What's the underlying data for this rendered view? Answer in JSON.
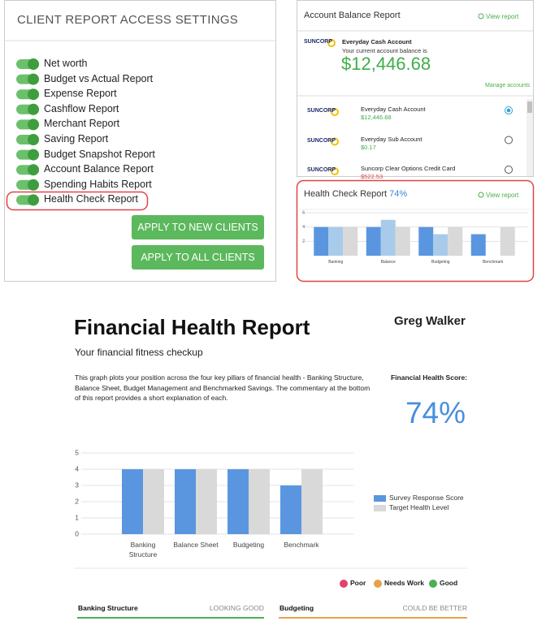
{
  "settings": {
    "title": "CLIENT REPORT ACCESS SETTINGS",
    "toggles": [
      "Net worth",
      "Budget vs Actual Report",
      "Expense Report",
      "Cashflow Report",
      "Merchant Report",
      "Saving Report",
      "Budget Snapshot Report",
      "Account Balance Report",
      "Spending Habits Report",
      "Health Check Report"
    ],
    "buttons": [
      "APPLY TO NEW CLIENTS",
      "APPLY TO ALL CLIENTS"
    ]
  },
  "account_balance": {
    "title": "Account Balance Report",
    "view_link": "View report",
    "bank": "SUNCORP",
    "primary_account": "Everyday Cash Account",
    "balance_caption": "Your current account balance is",
    "balance": "$12,446.68",
    "manage_link": "Manage accounts",
    "accounts": [
      {
        "name": "Everyday Cash Account",
        "amount": "$12,446.68",
        "color": "#3fae49"
      },
      {
        "name": "Everyday Sub Account",
        "amount": "$0.17",
        "color": "#3fae49"
      },
      {
        "name": "Suncorp Clear Options Credit Card",
        "amount": "$522.53",
        "color": "#e04343"
      }
    ]
  },
  "health_check": {
    "title": "Health Check Report",
    "score": "74%",
    "view_link": "View report"
  },
  "report": {
    "title": "Financial Health Report",
    "client": "Greg Walker",
    "subtitle": "Your financial fitness checkup",
    "description": "This graph plots your position across the four key pillars of financial health - Banking Structure, Balance Sheet, Budget Management and Benchmarked Savings. The commentary at the bottom of this report provides a short explanation of each.",
    "score_label": "Financial Health Score:",
    "score": "74%",
    "status_legend": [
      {
        "label": "Poor",
        "color": "#e0446c"
      },
      {
        "label": "Needs Work",
        "color": "#e8a24a"
      },
      {
        "label": "Good",
        "color": "#4caf50"
      }
    ],
    "sections": [
      {
        "name": "Banking Structure",
        "status": "LOOKING GOOD",
        "color": "#4caf50"
      },
      {
        "name": "Budgeting",
        "status": "COULD BE BETTER",
        "color": "#e8a24a"
      }
    ]
  },
  "chart_data": [
    {
      "type": "bar",
      "categories": [
        "Banking",
        "Balance",
        "Budgeting",
        "Benchmark"
      ],
      "series": [
        {
          "color": "#5a96e0",
          "values": [
            4,
            4,
            4,
            3
          ]
        },
        {
          "color": "#a9cbea",
          "values": [
            4,
            5,
            3,
            null
          ]
        },
        {
          "color": "#d9d9d9",
          "values": [
            4,
            4,
            4,
            4
          ]
        }
      ],
      "ylim": [
        0,
        6
      ],
      "yticks": [
        2,
        4,
        6
      ],
      "grid": true
    },
    {
      "type": "bar",
      "categories": [
        "Banking Structure",
        "Balance Sheet",
        "Budgeting",
        "Benchmark"
      ],
      "series": [
        {
          "name": "Survey Response Score",
          "color": "#5a96e0",
          "values": [
            4,
            4,
            4,
            3
          ]
        },
        {
          "name": "Target Health Level",
          "color": "#d9d9d9",
          "values": [
            4,
            4,
            4,
            4
          ]
        }
      ],
      "ylim": [
        0,
        5
      ],
      "yticks": [
        0,
        1,
        2,
        3,
        4,
        5
      ],
      "grid": true,
      "legend": "right"
    }
  ]
}
